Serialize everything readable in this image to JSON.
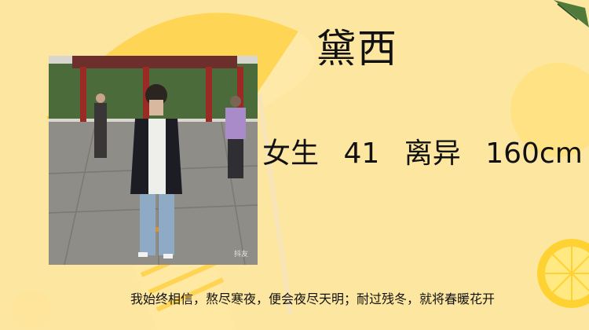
{
  "profile": {
    "name": "黛西",
    "gender": "女生",
    "age": "41",
    "marital_status": "离异",
    "height": "160cm",
    "motto": "我始终相信，熬尽寒夜，便会夜尽天明；耐过残冬，就将春暖花开",
    "photo_watermark": "抖友"
  },
  "colors": {
    "background": "#fde7a0",
    "umbrella": "#ffd24a",
    "text": "#111111"
  }
}
